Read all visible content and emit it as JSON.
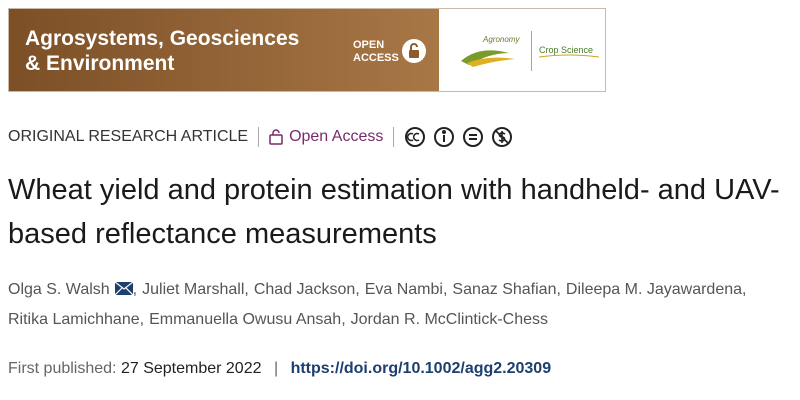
{
  "banner": {
    "journal_line1": "Agrosystems, Geosciences",
    "journal_line2": "& Environment",
    "open_access_line1": "OPEN",
    "open_access_line2": "ACCESS",
    "logo1_text": "Agronomy",
    "logo2_text": "Crop Science"
  },
  "article": {
    "type": "ORIGINAL RESEARCH ARTICLE",
    "access": "Open Access",
    "title_line1": "Wheat yield and protein estimation with handheld- and UAV-",
    "title_line2": "based reflectance measurements",
    "author_separator": ",",
    "authors": [
      [
        "Olga S. Walsh",
        "Juliet Marshall",
        "Chad Jackson",
        "Eva Nambi",
        "Sanaz Shafian",
        "Dileepa M. Jayawardena"
      ],
      [
        "Ritika Lamichhane",
        "Emmanuella Owusu Ansah",
        "Jordan R. McClintick-Chess"
      ]
    ],
    "published_label": "First published:",
    "published_date": "27 September 2022",
    "separator": "|",
    "doi": "https://doi.org/10.1002/agg2.20309"
  }
}
